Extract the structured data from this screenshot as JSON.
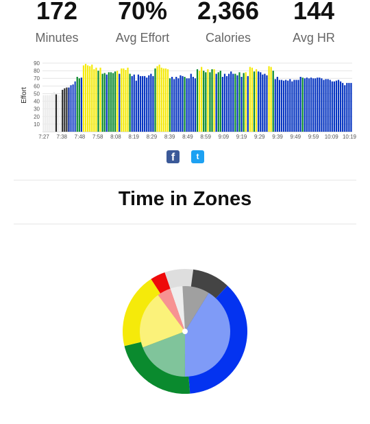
{
  "stats": [
    {
      "value": "172",
      "label": "Minutes"
    },
    {
      "value": "70%",
      "label": "Avg Effort"
    },
    {
      "value": "2,366",
      "label": "Calories"
    },
    {
      "value": "144",
      "label": "Avg HR"
    }
  ],
  "share": {
    "facebook_icon": "facebook-icon",
    "facebook_glyph": "f",
    "twitter_icon": "twitter-icon",
    "twitter_glyph": "t"
  },
  "zones_title": "Time in Zones",
  "zone_colors": {
    "zone1_white": "#e8e8e8",
    "zone2_grey": "#444444",
    "zone3_blue": "#0433f0",
    "zone4_green": "#0a8a2e",
    "zone5_yellow": "#f5ea0a",
    "zone6_red": "#ee0a0a"
  },
  "chart_data": [
    {
      "type": "bar",
      "ylabel": "Effort",
      "ylim": [
        0,
        90
      ],
      "y_ticks": [
        10,
        20,
        30,
        40,
        50,
        60,
        70,
        80,
        90
      ],
      "grid": true,
      "x_tick_labels": [
        "7:27",
        "7:38",
        "7:48",
        "7:58",
        "8:08",
        "8:19",
        "8:29",
        "8:39",
        "8:49",
        "8:59",
        "9:09",
        "9:19",
        "9:29",
        "9:39",
        "9:49",
        "9:59",
        "10:09",
        "10:19"
      ],
      "values": [
        48,
        48,
        48,
        48,
        49,
        52,
        49,
        48,
        48,
        55,
        57,
        58,
        58,
        61,
        62,
        66,
        72,
        70,
        71,
        87,
        89,
        87,
        86,
        88,
        82,
        84,
        80,
        84,
        76,
        77,
        75,
        78,
        78,
        77,
        79,
        80,
        76,
        83,
        83,
        81,
        84,
        76,
        73,
        75,
        67,
        75,
        73,
        73,
        73,
        71,
        74,
        76,
        73,
        83,
        86,
        88,
        84,
        83,
        83,
        82,
        70,
        72,
        69,
        72,
        70,
        74,
        73,
        72,
        70,
        70,
        76,
        72,
        70,
        82,
        80,
        85,
        80,
        78,
        82,
        78,
        82,
        82,
        76,
        78,
        80,
        72,
        76,
        73,
        76,
        79,
        76,
        76,
        74,
        78,
        72,
        77,
        78,
        73,
        85,
        84,
        79,
        82,
        79,
        78,
        75,
        76,
        74,
        86,
        85,
        80,
        69,
        72,
        68,
        68,
        67,
        68,
        67,
        69,
        66,
        68,
        68,
        68,
        72,
        71,
        70,
        71,
        70,
        71,
        70,
        70,
        71,
        71,
        70,
        68,
        69,
        69,
        68,
        66,
        66,
        67,
        68,
        66,
        64,
        61,
        64,
        64,
        64
      ],
      "colors": [
        "#ebebeb",
        "#ebebeb",
        "#ebebeb",
        "#ebebeb",
        "#ebebeb",
        "#ebebeb",
        "#222222",
        "#ebebeb",
        "#ebebeb",
        "#2a2a2a",
        "#333333",
        "#333333",
        "#0a2a9c",
        "#1d46c8",
        "#1d46c8",
        "#1d46c8",
        "#0a8a2e",
        "#0a8a2e",
        "#0433c0",
        "#f5ea0a",
        "#f5ea0a",
        "#f5ea0a",
        "#f5ea0a",
        "#f5ea0a",
        "#f5ea0a",
        "#f5ea0a",
        "#0a8a2e",
        "#f5ea0a",
        "#0a8a2e",
        "#0a8a2e",
        "#0433c0",
        "#0a8a2e",
        "#0a8a2e",
        "#0a8a2e",
        "#0a8a2e",
        "#f5ea0a",
        "#0433c0",
        "#f5ea0a",
        "#f5ea0a",
        "#f5ea0a",
        "#f5ea0a",
        "#0a8a2e",
        "#0433c0",
        "#0433c0",
        "#0433c0",
        "#0433c0",
        "#0433c0",
        "#0433c0",
        "#0433c0",
        "#0433c0",
        "#0433c0",
        "#0433c0",
        "#0433c0",
        "#0a8a2e",
        "#f5ea0a",
        "#f5ea0a",
        "#f5ea0a",
        "#f5ea0a",
        "#f5ea0a",
        "#f5ea0a",
        "#0a8a2e",
        "#0433c0",
        "#0433c0",
        "#0433c0",
        "#0433c0",
        "#0433c0",
        "#0433c0",
        "#0a8a2e",
        "#0433c0",
        "#0433c0",
        "#0433c0",
        "#0433c0",
        "#0433c0",
        "#0a8a2e",
        "#f5ea0a",
        "#f5ea0a",
        "#0a8a2e",
        "#0a8a2e",
        "#f5ea0a",
        "#0a8a2e",
        "#0a8a2e",
        "#f5ea0a",
        "#0433c0",
        "#0a8a2e",
        "#0a8a2e",
        "#0433c0",
        "#0433c0",
        "#0433c0",
        "#0433c0",
        "#0433c0",
        "#0433c0",
        "#0a8a2e",
        "#0433c0",
        "#0a8a2e",
        "#0433c0",
        "#0a8a2e",
        "#f5ea0a",
        "#0433c0",
        "#f5ea0a",
        "#f5ea0a",
        "#0a8a2e",
        "#f5ea0a",
        "#0433c0",
        "#0433c0",
        "#0433c0",
        "#0433c0",
        "#0433c0",
        "#f5ea0a",
        "#f5ea0a",
        "#0a8a2e",
        "#0433c0",
        "#0433c0",
        "#0433c0",
        "#0433c0",
        "#0433c0",
        "#0433c0",
        "#0433c0",
        "#0433c0",
        "#0433c0",
        "#0433c0",
        "#0433c0",
        "#0433c0",
        "#0433c0",
        "#0a8a2e",
        "#0433c0",
        "#0433c0",
        "#0433c0",
        "#0433c0",
        "#0433c0",
        "#0433c0",
        "#0433c0",
        "#0433c0",
        "#0433c0",
        "#0433c0",
        "#0433c0",
        "#0433c0",
        "#0433c0",
        "#0433c0",
        "#0433c0",
        "#0433c0",
        "#0433c0",
        "#0433c0",
        "#0433c0",
        "#0433c0",
        "#0433c0",
        "#0433c0",
        "#0433c0"
      ]
    },
    {
      "type": "pie",
      "slices": [
        {
          "zone": 1,
          "outer_value": 7.4,
          "inner_value": 4.4,
          "outer_color": "#dedede",
          "inner_color": "#eeeeee"
        },
        {
          "zone": 2,
          "outer_value": 9.8,
          "inner_value": 9.7,
          "outer_color": "#444444",
          "inner_color": "#a0a0a0"
        },
        {
          "zone": 3,
          "outer_value": 36.8,
          "inner_value": 41.2,
          "outer_color": "#0433f0",
          "inner_color": "#7f9bf7"
        },
        {
          "zone": 4,
          "outer_value": 22.5,
          "inner_value": 19.2,
          "outer_color": "#0a8a2e",
          "inner_color": "#80c49b"
        },
        {
          "zone": 5,
          "outer_value": 19.6,
          "inner_value": 20.6,
          "outer_color": "#f5ea0a",
          "inner_color": "#fbf27a"
        },
        {
          "zone": 6,
          "outer_value": 3.9,
          "inner_value": 4.9,
          "outer_color": "#ee0a0a",
          "inner_color": "#f79292"
        }
      ]
    }
  ]
}
